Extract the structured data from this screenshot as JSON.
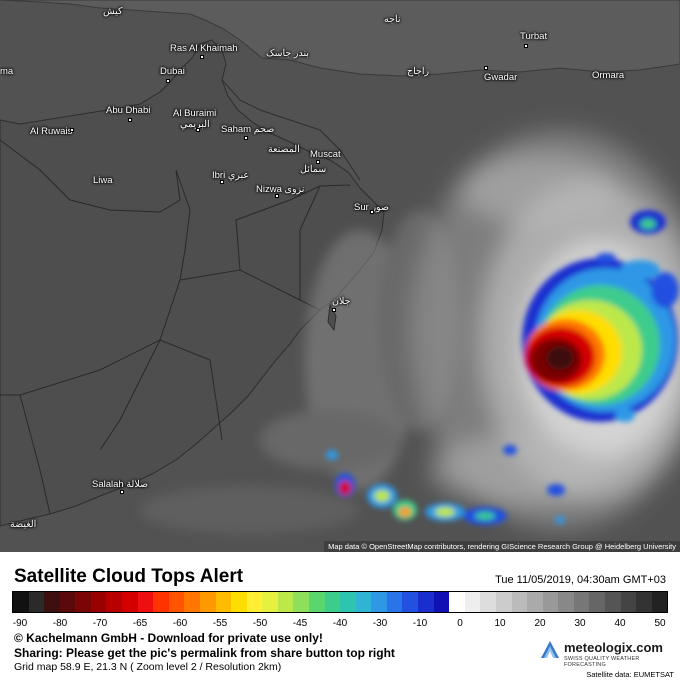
{
  "map": {
    "places": [
      {
        "id": "place-unknown-top",
        "label": "كيش"
      },
      {
        "id": "place-iran-city",
        "label": "ناجه"
      },
      {
        "id": "place-turbat",
        "label": "Turbat"
      },
      {
        "id": "place-ras-al-khaimah",
        "label": "Ras Al Khaimah"
      },
      {
        "id": "place-bandar-jask",
        "label": "بندر جاسک"
      },
      {
        "id": "place-dubai",
        "label": "Dubai"
      },
      {
        "id": "place-ma",
        "label": "ma"
      },
      {
        "id": "place-iran-coast",
        "label": "راجاج"
      },
      {
        "id": "place-gwadar",
        "label": "Gwadar"
      },
      {
        "id": "place-ormara",
        "label": "Ormara"
      },
      {
        "id": "place-abu-dhabi",
        "label": "Abu Dhabi"
      },
      {
        "id": "place-al-buraimi",
        "label": "Al Buraimi"
      },
      {
        "id": "place-al-buraimi-ar",
        "label": "البريمي"
      },
      {
        "id": "place-al-ruwais",
        "label": "Al Ruwais"
      },
      {
        "id": "place-saham",
        "label": "Saham صحم"
      },
      {
        "id": "place-al-musanaa",
        "label": "المصنعة"
      },
      {
        "id": "place-muscat",
        "label": "Muscat"
      },
      {
        "id": "place-ibri",
        "label": "Ibri عبري"
      },
      {
        "id": "place-samail",
        "label": "سمائل"
      },
      {
        "id": "place-liwa",
        "label": "Liwa"
      },
      {
        "id": "place-nizwa",
        "label": "Nizwa نزوى"
      },
      {
        "id": "place-sur",
        "label": "Sur صور"
      },
      {
        "id": "place-jalan",
        "label": "جلان"
      },
      {
        "id": "place-salalah",
        "label": "Salalah صلالة"
      },
      {
        "id": "place-al-ghaydah",
        "label": "الغيضة"
      }
    ],
    "attribution": "Map data © OpenStreetMap contributors, rendering GIScience Research Group @ Heidelberg University"
  },
  "legend": {
    "title": "Satellite Cloud Tops Alert",
    "timestamp": "Tue 11/05/2019, 04:30am GMT+03",
    "tick_labels": [
      "-90",
      "-80",
      "-70",
      "-65",
      "-60",
      "-55",
      "-50",
      "-45",
      "-40",
      "-30",
      "-10",
      "0",
      "10",
      "20",
      "30",
      "40",
      "50"
    ],
    "colors": [
      "#111111",
      "#2a2a2a",
      "#3d1010",
      "#5a0a0a",
      "#7a0505",
      "#990000",
      "#b80000",
      "#d40000",
      "#ee1010",
      "#ff3300",
      "#ff5500",
      "#ff7700",
      "#ff9900",
      "#ffbb00",
      "#ffdd00",
      "#ffee33",
      "#e6f040",
      "#bde84a",
      "#8ce05a",
      "#5ad66e",
      "#3ccc8c",
      "#2ec4b0",
      "#2fb4d4",
      "#2e98e6",
      "#2a74ea",
      "#2250e0",
      "#1a2ed0",
      "#1010b4",
      "#ffffff",
      "#eeeeee",
      "#dddddd",
      "#cccccc",
      "#bbbbbb",
      "#aaaaaa",
      "#999999",
      "#888888",
      "#777777",
      "#666666",
      "#555555",
      "#444444",
      "#333333",
      "#222222"
    ],
    "copyright": "© Kachelmann GmbH - Download for private use only!",
    "sharing": "Sharing: Please get the pic's permalink from share button top right",
    "grid_info": "Grid map 58.9 E, 21.3 N ( Zoom level 2 / Resolution 2km)",
    "brand_name": "meteologix.com",
    "brand_tagline": "SWISS QUALITY WEATHER FORECASTING",
    "satellite_source": "Satellite data: EUMETSAT"
  }
}
